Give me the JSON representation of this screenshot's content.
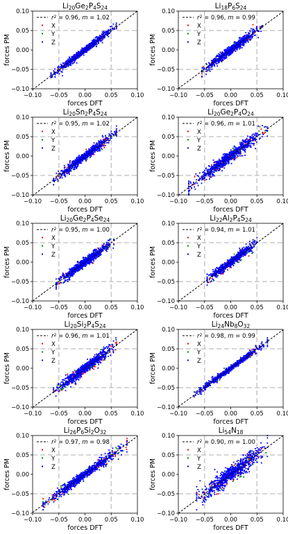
{
  "figure": {
    "xlabel": "forces DFT",
    "ylabel": "forces PM"
  },
  "legend": {
    "fit_label": "$r^2 = {r2}, m = {m}$",
    "components": [
      "X",
      "Y",
      "Z"
    ]
  },
  "colors": {
    "X": "#ff0000",
    "Y": "#008000",
    "Z": "#0000ff",
    "fit": "#000000",
    "grid": "#c8c8c8"
  },
  "chart_data": [
    {
      "type": "scatter",
      "title": "Li20Ge2P4S24",
      "title_parts": [
        [
          "Li",
          ""
        ],
        [
          "20",
          "sub"
        ],
        [
          "Ge",
          ""
        ],
        [
          "2",
          "sub"
        ],
        [
          "P",
          ""
        ],
        [
          "4",
          "sub"
        ],
        [
          "S",
          ""
        ],
        [
          "24",
          "sub"
        ]
      ],
      "r2": "0.96",
      "m": "1.02",
      "xlim": [
        -0.1,
        0.1
      ],
      "ylim": [
        -0.1,
        0.1
      ],
      "xticks": [
        "−0.10",
        "−0.05",
        "0.00",
        "0.05",
        "0.10"
      ],
      "yticks": [
        "−0.10",
        "−0.05",
        "0.00",
        "0.05",
        "0.10"
      ],
      "xlabel": "forces DFT",
      "ylabel": "forces PM",
      "grid": "dashed at ±0.05",
      "legend_position": "upper-left",
      "spread": 0.004,
      "range": [
        -0.065,
        0.06
      ],
      "fit_slope": 1.02
    },
    {
      "type": "scatter",
      "title": "Li18P6S24",
      "title_parts": [
        [
          "Li",
          ""
        ],
        [
          "18",
          "sub"
        ],
        [
          "P",
          ""
        ],
        [
          "6",
          "sub"
        ],
        [
          "S",
          ""
        ],
        [
          "24",
          "sub"
        ]
      ],
      "r2": "0.96",
      "m": "0.99",
      "xlim": [
        -0.1,
        0.1
      ],
      "ylim": [
        -0.1,
        0.1
      ],
      "xticks": [
        "−0.10",
        "−0.05",
        "0.00",
        "0.05",
        "0.10"
      ],
      "yticks": [
        "−0.10",
        "−0.05",
        "0.00",
        "0.05",
        "0.10"
      ],
      "xlabel": "forces DFT",
      "ylabel": "forces PM",
      "grid": "dashed at ±0.05",
      "legend_position": "upper-left",
      "spread": 0.005,
      "range": [
        -0.055,
        0.06
      ],
      "fit_slope": 0.99
    },
    {
      "type": "scatter",
      "title": "Li20Sn2P4S24",
      "title_parts": [
        [
          "Li",
          ""
        ],
        [
          "20",
          "sub"
        ],
        [
          "Sn",
          ""
        ],
        [
          "2",
          "sub"
        ],
        [
          "P",
          ""
        ],
        [
          "4",
          "sub"
        ],
        [
          "S",
          ""
        ],
        [
          "24",
          "sub"
        ]
      ],
      "r2": "0.95",
      "m": "1.02",
      "xlim": [
        -0.1,
        0.1
      ],
      "ylim": [
        -0.1,
        0.1
      ],
      "xticks": [
        "−0.10",
        "−0.05",
        "0.00",
        "0.05",
        "0.10"
      ],
      "yticks": [
        "−0.10",
        "−0.05",
        "0.00",
        "0.05",
        "0.10"
      ],
      "xlabel": "forces DFT",
      "ylabel": "forces PM",
      "grid": "dashed at ±0.05",
      "legend_position": "upper-left",
      "spread": 0.005,
      "range": [
        -0.06,
        0.06
      ],
      "fit_slope": 1.02
    },
    {
      "type": "scatter",
      "title": "Li20Ge2P4O24",
      "title_parts": [
        [
          "Li",
          ""
        ],
        [
          "20",
          "sub"
        ],
        [
          "Ge",
          ""
        ],
        [
          "2",
          "sub"
        ],
        [
          "P",
          ""
        ],
        [
          "4",
          "sub"
        ],
        [
          "O",
          ""
        ],
        [
          "24",
          "sub"
        ]
      ],
      "r2": "0.96",
      "m": "1.01",
      "xlim": [
        -0.1,
        0.1
      ],
      "ylim": [
        -0.1,
        0.1
      ],
      "xticks": [
        "−0.10",
        "−0.05",
        "0.00",
        "0.05",
        "0.10"
      ],
      "yticks": [
        "−0.10",
        "−0.05",
        "0.00",
        "0.05",
        "0.10"
      ],
      "xlabel": "forces DFT",
      "ylabel": "forces PM",
      "grid": "dashed at ±0.05",
      "legend_position": "upper-left",
      "spread": 0.006,
      "range": [
        -0.08,
        0.07
      ],
      "fit_slope": 1.01
    },
    {
      "type": "scatter",
      "title": "Li20Ge2P4Se24",
      "title_parts": [
        [
          "Li",
          ""
        ],
        [
          "20",
          "sub"
        ],
        [
          "Ge",
          ""
        ],
        [
          "2",
          "sub"
        ],
        [
          "P",
          ""
        ],
        [
          "4",
          "sub"
        ],
        [
          "Se",
          ""
        ],
        [
          "24",
          "sub"
        ]
      ],
      "r2": "0.95",
      "m": "1.00",
      "xlim": [
        -0.1,
        0.1
      ],
      "ylim": [
        -0.1,
        0.1
      ],
      "xticks": [
        "−0.10",
        "−0.05",
        "0.00",
        "0.05",
        "0.10"
      ],
      "yticks": [
        "−0.10",
        "−0.05",
        "0.00",
        "0.05",
        "0.10"
      ],
      "xlabel": "forces DFT",
      "ylabel": "forces PM",
      "grid": "dashed at ±0.05",
      "legend_position": "upper-left",
      "spread": 0.005,
      "range": [
        -0.055,
        0.055
      ],
      "fit_slope": 1.0
    },
    {
      "type": "scatter",
      "title": "Li22Al2P4S24",
      "title_parts": [
        [
          "Li",
          ""
        ],
        [
          "22",
          "sub"
        ],
        [
          "Al",
          ""
        ],
        [
          "2",
          "sub"
        ],
        [
          "P",
          ""
        ],
        [
          "4",
          "sub"
        ],
        [
          "S",
          ""
        ],
        [
          "24",
          "sub"
        ]
      ],
      "r2": "0.94",
      "m": "1.01",
      "xlim": [
        -0.1,
        0.1
      ],
      "ylim": [
        -0.1,
        0.1
      ],
      "xticks": [
        "−0.10",
        "−0.05",
        "0.00",
        "0.05",
        "0.10"
      ],
      "yticks": [
        "−0.10",
        "−0.05",
        "0.00",
        "0.05",
        "0.10"
      ],
      "xlabel": "forces DFT",
      "ylabel": "forces PM",
      "grid": "dashed at ±0.05",
      "legend_position": "upper-left",
      "spread": 0.005,
      "range": [
        -0.045,
        0.05
      ],
      "fit_slope": 1.01
    },
    {
      "type": "scatter",
      "title": "Li20Si2P4S24",
      "title_parts": [
        [
          "Li",
          ""
        ],
        [
          "20",
          "sub"
        ],
        [
          "Si",
          ""
        ],
        [
          "2",
          "sub"
        ],
        [
          "P",
          ""
        ],
        [
          "4",
          "sub"
        ],
        [
          "S",
          ""
        ],
        [
          "24",
          "sub"
        ]
      ],
      "r2": "0.96",
      "m": "1.01",
      "xlim": [
        -0.1,
        0.1
      ],
      "ylim": [
        -0.1,
        0.1
      ],
      "xticks": [
        "−0.10",
        "−0.05",
        "0.00",
        "0.05",
        "0.10"
      ],
      "yticks": [
        "−0.10",
        "−0.05",
        "0.00",
        "0.05",
        "0.10"
      ],
      "xlabel": "forces DFT",
      "ylabel": "forces PM",
      "grid": "dashed at ±0.05",
      "legend_position": "upper-left",
      "spread": 0.006,
      "range": [
        -0.06,
        0.06
      ],
      "fit_slope": 1.01
    },
    {
      "type": "scatter",
      "title": "Li24Nb8O32",
      "title_parts": [
        [
          "Li",
          ""
        ],
        [
          "24",
          "sub"
        ],
        [
          "Nb",
          ""
        ],
        [
          "8",
          "sub"
        ],
        [
          "O",
          ""
        ],
        [
          "32",
          "sub"
        ]
      ],
      "r2": "0.98",
      "m": "0.99",
      "xlim": [
        -0.1,
        0.1
      ],
      "ylim": [
        -0.1,
        0.1
      ],
      "xticks": [
        "−0.10",
        "−0.05",
        "0.00",
        "0.05",
        "0.10"
      ],
      "yticks": [
        "−0.10",
        "−0.05",
        "0.00",
        "0.05",
        "0.10"
      ],
      "xlabel": "forces DFT",
      "ylabel": "forces PM",
      "grid": "dashed at ±0.05",
      "legend_position": "upper-left",
      "spread": 0.003,
      "range": [
        -0.07,
        0.07
      ],
      "fit_slope": 0.99
    },
    {
      "type": "scatter",
      "title": "Li26P6Si2O32",
      "title_parts": [
        [
          "Li",
          ""
        ],
        [
          "26",
          "sub"
        ],
        [
          "P",
          ""
        ],
        [
          "6",
          "sub"
        ],
        [
          "Si",
          ""
        ],
        [
          "2",
          "sub"
        ],
        [
          "O",
          ""
        ],
        [
          "32",
          "sub"
        ]
      ],
      "r2": "0.97",
      "m": "0.98",
      "xlim": [
        -0.1,
        0.1
      ],
      "ylim": [
        -0.1,
        0.1
      ],
      "xticks": [
        "−0.10",
        "−0.05",
        "0.00",
        "0.05",
        "0.10"
      ],
      "yticks": [
        "−0.10",
        "−0.05",
        "0.00",
        "0.05",
        "0.10"
      ],
      "xlabel": "forces DFT",
      "ylabel": "forces PM",
      "grid": "dashed at ±0.05",
      "legend_position": "upper-left",
      "spread": 0.005,
      "range": [
        -0.08,
        0.08
      ],
      "fit_slope": 0.98
    },
    {
      "type": "scatter",
      "title": "Li54N18",
      "title_parts": [
        [
          "Li",
          ""
        ],
        [
          "54",
          "sub"
        ],
        [
          "N",
          ""
        ],
        [
          "18",
          "sub"
        ]
      ],
      "r2": "0.90",
      "m": "1.00",
      "xlim": [
        -0.1,
        0.1
      ],
      "ylim": [
        -0.1,
        0.1
      ],
      "xticks": [
        "−0.10",
        "−0.05",
        "0.00",
        "0.05",
        "0.10"
      ],
      "yticks": [
        "−0.10",
        "−0.05",
        "0.00",
        "0.05",
        "0.10"
      ],
      "xlabel": "forces DFT",
      "ylabel": "forces PM",
      "grid": "dashed at ±0.05",
      "legend_position": "upper-left",
      "spread": 0.009,
      "range": [
        -0.065,
        0.07
      ],
      "fit_slope": 1.0
    }
  ]
}
